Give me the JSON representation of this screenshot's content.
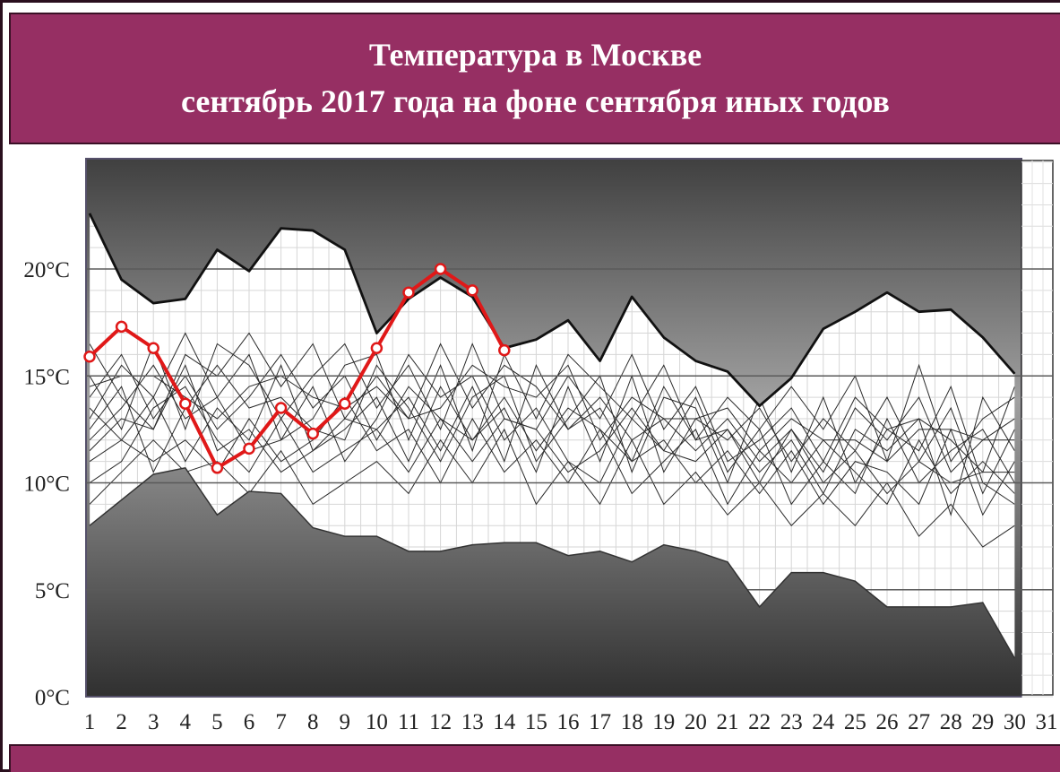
{
  "header": {
    "title": "Температура в Москве",
    "subtitle": "сентябрь 2017 года на фоне сентября иных годов"
  },
  "colors": {
    "header_bg": "#962f63",
    "highlight_line": "#e01818",
    "envelope_line": "#111111",
    "background_gradient_dark": "#404040",
    "background_gradient_light": "#9a9a9a"
  },
  "chart_data": {
    "type": "line",
    "title": "Температура в Москве",
    "subtitle": "сентябрь 2017 года на фоне сентября иных годов",
    "xlabel": "",
    "ylabel": "",
    "x_tick_labels": [
      "1",
      "2",
      "3",
      "4",
      "5",
      "6",
      "7",
      "8",
      "9",
      "10",
      "11",
      "12",
      "13",
      "14",
      "15",
      "16",
      "17",
      "18",
      "19",
      "20",
      "21",
      "22",
      "23",
      "24",
      "25",
      "26",
      "27",
      "28",
      "29",
      "30",
      "31"
    ],
    "y_tick_labels": [
      "0°C",
      "5°C",
      "10°C",
      "15°C",
      "20°C"
    ],
    "y_ticks": [
      0,
      5,
      10,
      15,
      20
    ],
    "xlim": [
      1,
      31
    ],
    "ylim": [
      0,
      25
    ],
    "grid": true,
    "envelope_max": [
      22.6,
      19.5,
      18.4,
      18.6,
      20.9,
      19.9,
      21.9,
      21.8,
      20.9,
      17.0,
      18.6,
      19.6,
      18.7,
      16.3,
      16.7,
      17.6,
      15.7,
      18.7,
      16.8,
      15.7,
      15.2,
      13.6,
      14.9,
      17.2,
      18.0,
      18.9,
      18.0,
      18.1,
      16.8,
      15.1
    ],
    "envelope_min": [
      8.0,
      9.2,
      10.4,
      10.7,
      8.5,
      9.6,
      9.5,
      7.9,
      7.5,
      7.5,
      6.8,
      6.8,
      7.1,
      7.2,
      7.2,
      6.6,
      6.8,
      6.3,
      7.1,
      6.8,
      6.3,
      4.2,
      5.8,
      5.8,
      5.4,
      4.2,
      4.2,
      4.2,
      4.4,
      1.8
    ],
    "series": [
      {
        "name": "2017",
        "values": [
          15.9,
          17.3,
          16.3,
          13.7,
          10.7,
          11.6,
          13.5,
          12.3,
          13.7,
          16.3,
          18.9,
          20.0,
          19.0,
          16.2
        ],
        "color": "#e01818"
      }
    ],
    "background_series": [
      [
        14.0,
        16.0,
        13.0,
        15.0,
        12.5,
        14.0,
        16.0,
        13.5,
        15.0,
        12.0,
        14.5,
        13.0,
        12.0,
        14.0,
        11.5,
        13.5,
        12.5,
        11.0,
        14.5,
        12.0,
        12.5,
        10.5,
        12.0,
        9.5,
        12.5,
        11.5,
        13.0,
        12.0,
        10.5,
        14.5
      ],
      [
        12.0,
        13.5,
        15.5,
        13.0,
        14.0,
        11.5,
        12.0,
        14.5,
        11.0,
        13.0,
        16.0,
        14.0,
        15.0,
        12.0,
        13.5,
        11.0,
        10.0,
        13.0,
        11.5,
        14.0,
        10.5,
        12.5,
        9.0,
        11.0,
        9.5,
        13.0,
        10.0,
        11.5,
        12.5,
        10.0
      ],
      [
        16.5,
        14.0,
        12.5,
        16.0,
        15.0,
        17.0,
        14.5,
        16.5,
        13.0,
        15.0,
        13.0,
        16.5,
        13.5,
        15.5,
        14.5,
        12.5,
        14.0,
        12.0,
        13.0,
        11.5,
        13.0,
        11.0,
        12.5,
        10.5,
        13.5,
        12.0,
        14.0,
        10.5,
        12.0,
        13.0
      ],
      [
        11.0,
        12.0,
        11.0,
        12.0,
        10.5,
        13.0,
        11.0,
        12.0,
        14.0,
        11.5,
        12.5,
        10.0,
        13.0,
        10.5,
        12.0,
        10.0,
        12.5,
        9.5,
        11.0,
        12.5,
        9.0,
        11.5,
        10.0,
        12.0,
        10.5,
        9.0,
        12.0,
        9.5,
        11.0,
        9.5
      ],
      [
        13.0,
        15.5,
        14.0,
        11.0,
        13.5,
        12.0,
        15.5,
        11.5,
        12.5,
        14.0,
        11.0,
        14.5,
        12.0,
        13.5,
        10.5,
        14.5,
        11.0,
        15.0,
        10.5,
        13.0,
        12.0,
        13.5,
        11.0,
        13.0,
        11.5,
        14.0,
        11.0,
        13.5,
        9.5,
        12.5
      ],
      [
        10.0,
        11.0,
        13.5,
        14.5,
        12.0,
        10.5,
        13.0,
        10.5,
        11.5,
        12.5,
        14.0,
        11.5,
        14.5,
        11.0,
        15.5,
        12.5,
        13.5,
        11.0,
        12.0,
        10.0,
        11.5,
        9.5,
        11.5,
        9.0,
        11.0,
        10.5,
        9.0,
        12.5,
        8.5,
        11.0
      ],
      [
        15.0,
        12.5,
        16.5,
        12.5,
        16.5,
        15.5,
        13.0,
        15.0,
        16.5,
        13.5,
        15.5,
        12.5,
        16.5,
        13.0,
        12.5,
        15.0,
        13.0,
        16.0,
        12.5,
        14.5,
        11.0,
        12.0,
        13.5,
        11.0,
        14.0,
        12.5,
        11.5,
        14.5,
        10.0,
        9.0
      ],
      [
        9.0,
        10.5,
        12.0,
        10.5,
        11.0,
        9.5,
        11.5,
        9.0,
        10.0,
        11.0,
        9.5,
        12.0,
        10.0,
        12.5,
        9.0,
        11.0,
        9.0,
        12.0,
        9.0,
        10.5,
        8.5,
        10.0,
        8.0,
        9.5,
        8.0,
        10.0,
        7.5,
        9.0,
        7.0,
        8.0
      ],
      [
        13.5,
        12.0,
        14.0,
        17.0,
        14.0,
        16.0,
        12.0,
        13.0,
        15.5,
        16.0,
        12.0,
        15.5,
        11.5,
        16.0,
        13.0,
        16.0,
        14.5,
        13.0,
        15.5,
        12.0,
        14.0,
        12.5,
        14.5,
        12.5,
        15.0,
        11.0,
        15.5,
        11.0,
        13.0,
        14.0
      ],
      [
        12.5,
        14.5,
        10.5,
        13.5,
        15.5,
        13.5,
        14.0,
        12.5,
        12.0,
        15.5,
        13.5,
        11.0,
        14.0,
        15.0,
        11.0,
        13.0,
        15.0,
        10.5,
        14.0,
        13.5,
        10.0,
        14.0,
        10.5,
        14.0,
        10.0,
        12.5,
        13.0,
        8.5,
        14.0,
        11.5
      ],
      [
        14.5,
        15.0,
        15.0,
        14.0,
        13.0,
        14.5,
        15.0,
        14.0,
        13.5,
        14.5,
        13.0,
        13.5,
        15.5,
        14.5,
        14.0,
        15.5,
        12.0,
        14.0,
        13.0,
        13.0,
        13.5,
        11.5,
        13.0,
        12.0,
        12.0,
        11.0,
        12.5,
        12.5,
        12.0,
        12.0
      ],
      [
        11.5,
        13.0,
        12.5,
        15.5,
        11.5,
        12.5,
        10.5,
        11.5,
        13.0,
        12.5,
        10.5,
        13.0,
        11.0,
        13.0,
        12.5,
        10.5,
        11.5,
        13.5,
        11.5,
        11.0,
        12.5,
        10.0,
        12.5,
        10.0,
        11.5,
        9.5,
        11.0,
        10.0,
        10.5,
        10.5
      ]
    ]
  }
}
